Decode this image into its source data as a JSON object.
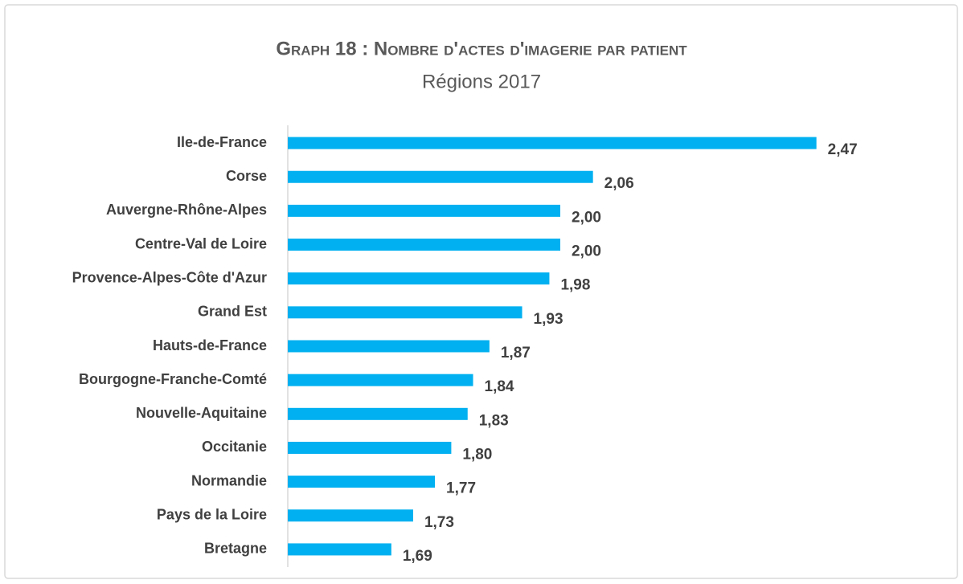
{
  "chart_data": {
    "type": "hbar",
    "title": "Graph 18 : Nombre d'actes d'imagerie par patient",
    "subtitle": "Régions 2017",
    "categories": [
      "Ile-de-France",
      "Corse",
      "Auvergne-Rhône-Alpes",
      "Centre-Val de Loire",
      "Provence-Alpes-Côte d'Azur",
      "Grand Est",
      "Hauts-de-France",
      "Bourgogne-Franche-Comté",
      "Nouvelle-Aquitaine",
      "Occitanie",
      "Normandie",
      "Pays de la Loire",
      "Bretagne"
    ],
    "values": [
      2.47,
      2.06,
      2.0,
      2.0,
      1.98,
      1.93,
      1.87,
      1.84,
      1.83,
      1.8,
      1.77,
      1.73,
      1.69
    ],
    "value_labels": [
      "2,47",
      "2,06",
      "2,00",
      "2,00",
      "1,98",
      "1,93",
      "1,87",
      "1,84",
      "1,83",
      "1,80",
      "1,77",
      "1,73",
      "1,69"
    ],
    "color": "#00b0f0",
    "xlim": [
      1.5,
      2.5
    ]
  }
}
